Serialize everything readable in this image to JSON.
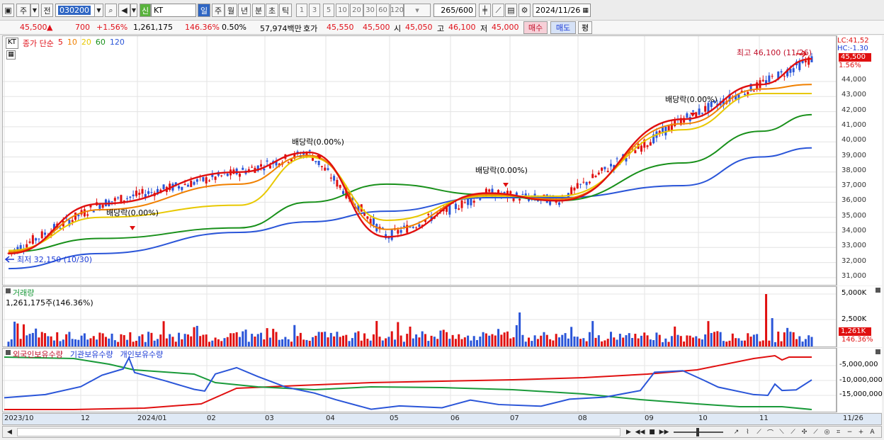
{
  "toolbar": {
    "market": "주",
    "prev": "전",
    "code": "030200",
    "badge": "신",
    "name": "KT",
    "periods": [
      "일",
      "주",
      "월",
      "년",
      "분",
      "초",
      "틱"
    ],
    "active_period": "일",
    "intervals": [
      "1",
      "3",
      "5",
      "10",
      "20",
      "30",
      "60",
      "120"
    ],
    "count": "265",
    "count_total": "/600",
    "date": "2024/11/26"
  },
  "quote": {
    "price": "45,500",
    "change_arrow": "▲",
    "change": "700",
    "change_pct": "+1.56%",
    "volume": "1,261,175",
    "volume_pct": "146.36%",
    "turnover": "0.50%",
    "amount": "57,974백만",
    "bid_label": "호가",
    "ask": "45,550",
    "bid": "45,500",
    "open_label": "시",
    "open": "45,050",
    "high_label": "고",
    "high": "46,100",
    "low_label": "저",
    "low": "45,000",
    "buy": "매수",
    "sell": "매도",
    "avg": "평"
  },
  "price_panel": {
    "legend_code": "KT",
    "legend_title": "종가 단순",
    "ma_periods": [
      "5",
      "10",
      "20",
      "60",
      "120"
    ],
    "ma_colors": [
      "#e01010",
      "#f08000",
      "#e8c800",
      "#18901a",
      "#2a55d8"
    ],
    "lc": "LC:41,52",
    "hc": "HC:-1.30",
    "price_tag": "45,500",
    "pct_tag": "1.56%",
    "y_labels": [
      "44,000",
      "43,000",
      "42,000",
      "41,000",
      "40,000",
      "39,000",
      "38,000",
      "37,000",
      "36,000",
      "35,000",
      "34,000",
      "33,000",
      "32,000",
      "31,000"
    ],
    "annotations": {
      "max": "최고 46,100 (11/26)",
      "min": "최저 32,150 (10/30)",
      "dividend": "배당락(0.00%)"
    }
  },
  "volume_panel": {
    "title": "거래량",
    "value": "1,261,175주(146.36%)",
    "y_labels": [
      "5,000K",
      "2,500K"
    ],
    "tag": "1,261K",
    "tag_pct": "146.36%"
  },
  "holding_panel": {
    "series": [
      "외국인보유수량",
      "기관보유수량",
      "개인보유수량"
    ],
    "series_colors": [
      "#e01010",
      "#1a9a3a",
      "#2a55d8"
    ],
    "y_labels": [
      "-5,000,000",
      "-10,000,000",
      "-15,000,000"
    ]
  },
  "x_axis": {
    "labels": [
      "2023/10",
      "12",
      "2024/01",
      "02",
      "03",
      "04",
      "05",
      "06",
      "07",
      "08",
      "09",
      "10",
      "11"
    ],
    "right_label": "11/26"
  },
  "chart_data": {
    "type": "line",
    "x": [
      "2023-10-30",
      "2023-12-14",
      "2024-02-20",
      "2024-03-25",
      "2024-05-02",
      "2024-06-20",
      "2024-07-25",
      "2024-09-24",
      "2024-11-01",
      "2024-11-26"
    ],
    "series": [
      {
        "name": "5",
        "values": [
          32600,
          35900,
          38000,
          39300,
          33700,
          36600,
          36100,
          41500,
          43800,
          45500
        ]
      },
      {
        "name": "10",
        "values": [
          32700,
          35500,
          37200,
          39100,
          34200,
          36500,
          36200,
          41200,
          43500,
          43800
        ]
      },
      {
        "name": "20",
        "values": [
          32800,
          35000,
          35800,
          39000,
          34800,
          36400,
          36400,
          40800,
          43200,
          43200
        ]
      },
      {
        "name": "60",
        "values": [
          32700,
          33600,
          34300,
          36000,
          37200,
          36500,
          36100,
          38600,
          40700,
          41800
        ]
      },
      {
        "name": "120",
        "values": [
          31600,
          32600,
          34000,
          34700,
          35400,
          36300,
          36300,
          37100,
          39000,
          39600
        ]
      }
    ],
    "ylim": [
      30500,
      46500
    ]
  }
}
